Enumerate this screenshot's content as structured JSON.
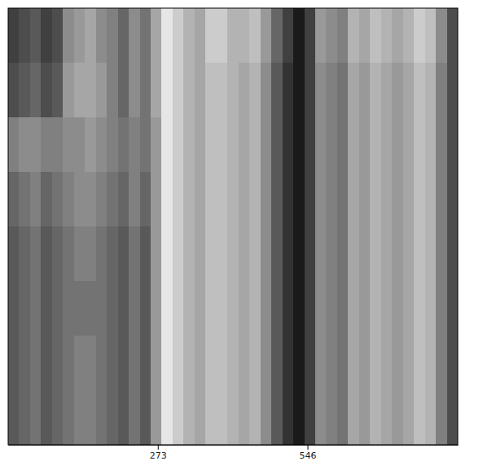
{
  "chart_data": {
    "type": "heatmap",
    "xlim": [
      0,
      820
    ],
    "xticks": [
      273,
      546
    ],
    "tick_labels": "x",
    "zlim": [
      0,
      1
    ],
    "cells": [
      [
        0.75,
        0.7,
        0.65,
        0.75,
        0.7,
        0.45,
        0.4,
        0.35,
        0.45,
        0.5,
        0.6,
        0.45,
        0.55,
        0.35,
        0.1,
        0.2,
        0.3,
        0.35,
        0.2,
        0.2,
        0.3,
        0.3,
        0.25,
        0.4,
        0.6,
        0.75,
        0.9,
        0.75,
        0.4,
        0.45,
        0.5,
        0.3,
        0.35,
        0.25,
        0.3,
        0.35,
        0.3,
        0.2,
        0.25,
        0.45,
        0.7
      ],
      [
        0.7,
        0.65,
        0.6,
        0.7,
        0.65,
        0.4,
        0.35,
        0.35,
        0.4,
        0.5,
        0.6,
        0.45,
        0.55,
        0.35,
        0.1,
        0.2,
        0.3,
        0.35,
        0.25,
        0.25,
        0.3,
        0.35,
        0.3,
        0.45,
        0.65,
        0.8,
        0.9,
        0.75,
        0.45,
        0.5,
        0.55,
        0.35,
        0.4,
        0.3,
        0.35,
        0.4,
        0.35,
        0.25,
        0.3,
        0.5,
        0.7
      ],
      [
        0.5,
        0.45,
        0.45,
        0.5,
        0.5,
        0.45,
        0.45,
        0.4,
        0.45,
        0.5,
        0.55,
        0.5,
        0.55,
        0.4,
        0.1,
        0.2,
        0.3,
        0.35,
        0.25,
        0.25,
        0.3,
        0.35,
        0.3,
        0.45,
        0.65,
        0.8,
        0.9,
        0.75,
        0.45,
        0.5,
        0.55,
        0.35,
        0.4,
        0.3,
        0.35,
        0.4,
        0.35,
        0.25,
        0.3,
        0.5,
        0.7
      ],
      [
        0.6,
        0.55,
        0.5,
        0.6,
        0.55,
        0.5,
        0.45,
        0.45,
        0.5,
        0.55,
        0.6,
        0.5,
        0.6,
        0.4,
        0.1,
        0.2,
        0.3,
        0.35,
        0.25,
        0.25,
        0.3,
        0.35,
        0.3,
        0.45,
        0.65,
        0.8,
        0.9,
        0.75,
        0.45,
        0.5,
        0.55,
        0.35,
        0.4,
        0.3,
        0.35,
        0.4,
        0.35,
        0.25,
        0.3,
        0.5,
        0.7
      ],
      [
        0.65,
        0.6,
        0.55,
        0.65,
        0.6,
        0.55,
        0.5,
        0.5,
        0.55,
        0.6,
        0.65,
        0.55,
        0.65,
        0.4,
        0.1,
        0.2,
        0.3,
        0.35,
        0.25,
        0.25,
        0.3,
        0.35,
        0.3,
        0.45,
        0.65,
        0.8,
        0.9,
        0.75,
        0.45,
        0.5,
        0.55,
        0.35,
        0.4,
        0.3,
        0.35,
        0.4,
        0.35,
        0.25,
        0.3,
        0.5,
        0.7
      ],
      [
        0.65,
        0.6,
        0.55,
        0.65,
        0.6,
        0.55,
        0.55,
        0.55,
        0.55,
        0.6,
        0.65,
        0.55,
        0.65,
        0.4,
        0.1,
        0.2,
        0.3,
        0.35,
        0.25,
        0.25,
        0.3,
        0.35,
        0.3,
        0.45,
        0.65,
        0.8,
        0.9,
        0.75,
        0.45,
        0.5,
        0.55,
        0.35,
        0.4,
        0.3,
        0.35,
        0.4,
        0.35,
        0.25,
        0.3,
        0.5,
        0.7
      ],
      [
        0.65,
        0.6,
        0.55,
        0.65,
        0.6,
        0.55,
        0.5,
        0.5,
        0.55,
        0.6,
        0.65,
        0.55,
        0.65,
        0.4,
        0.1,
        0.2,
        0.3,
        0.35,
        0.25,
        0.25,
        0.3,
        0.35,
        0.3,
        0.45,
        0.65,
        0.8,
        0.9,
        0.75,
        0.45,
        0.5,
        0.55,
        0.35,
        0.4,
        0.3,
        0.35,
        0.4,
        0.35,
        0.25,
        0.3,
        0.5,
        0.7
      ],
      [
        0.65,
        0.6,
        0.55,
        0.65,
        0.6,
        0.55,
        0.5,
        0.5,
        0.55,
        0.6,
        0.65,
        0.55,
        0.65,
        0.4,
        0.1,
        0.2,
        0.3,
        0.35,
        0.25,
        0.25,
        0.3,
        0.35,
        0.3,
        0.45,
        0.65,
        0.8,
        0.9,
        0.75,
        0.45,
        0.5,
        0.55,
        0.35,
        0.4,
        0.3,
        0.35,
        0.4,
        0.35,
        0.25,
        0.3,
        0.5,
        0.7
      ]
    ]
  }
}
